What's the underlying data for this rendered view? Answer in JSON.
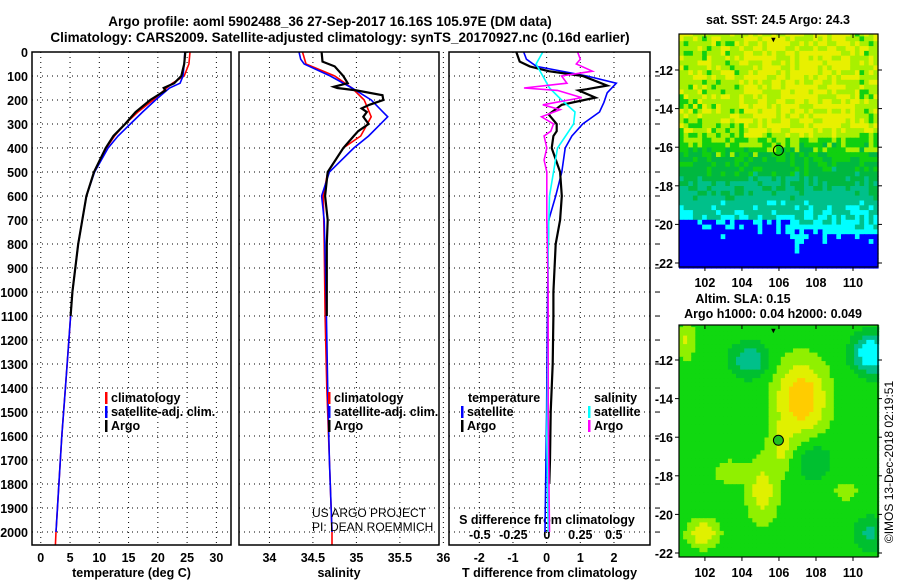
{
  "header": {
    "title_line1": "Argo profile: aoml 5902488_36 27-Sep-2017 16.16S 105.97E (DM data)",
    "title_line2": "Climatology: CARS2009. Satellite-adjusted climatology: synTS_20170927.nc (0.16d earlier)"
  },
  "credit": {
    "line1": "US ARGO PROJECT",
    "line2": "PI: DEAN ROEMMICH"
  },
  "timestamp": "©IMOS 13-Dec-2018 02:19:51",
  "colors": {
    "climatology": "#ff0000",
    "satellite": "#0000ff",
    "argo": "#000000",
    "sal_satellite": "#00ffff",
    "sal_argo": "#ff00ff"
  },
  "chart_data": [
    {
      "type": "line",
      "title": "",
      "xlabel": "temperature (deg C)",
      "ylabel": "",
      "xlim": [
        -1.5,
        32.5
      ],
      "ylim": [
        2054,
        0
      ],
      "xticks": [
        "0",
        "5",
        "10",
        "15",
        "20",
        "25",
        "30"
      ],
      "yticks": [
        "0",
        "100",
        "200",
        "300",
        "400",
        "500",
        "600",
        "700",
        "800",
        "900",
        "1000",
        "1100",
        "1200",
        "1300",
        "1400",
        "1500",
        "1600",
        "1700",
        "1800",
        "1900",
        "2000"
      ],
      "grid": true,
      "legend": {
        "placement": "bottom-center",
        "entries": [
          "climatology",
          "satellite-adj. clim.",
          "Argo"
        ]
      },
      "series": [
        {
          "name": "climatology",
          "color": "#ff0000",
          "depth": [
            0,
            50,
            100,
            130,
            150,
            200,
            250,
            300,
            350,
            400,
            500,
            600,
            700,
            800,
            900,
            1000,
            1100,
            1200,
            1400,
            1600,
            1800,
            2000,
            2054
          ],
          "values": [
            25.5,
            25.3,
            24.5,
            22.5,
            21.5,
            19.2,
            16.6,
            14.4,
            12.6,
            11.2,
            9.1,
            7.8,
            7.1,
            6.4,
            5.9,
            5.4,
            5.1,
            4.8,
            4.2,
            3.6,
            3.1,
            2.6,
            2.5
          ]
        },
        {
          "name": "satellite-adj. clim.",
          "color": "#0000ff",
          "depth": [
            0,
            50,
            100,
            130,
            150,
            200,
            250,
            300,
            350,
            400,
            500,
            600,
            700,
            800,
            900,
            1000,
            1100,
            1200,
            1400,
            1600,
            1800,
            2000
          ],
          "values": [
            24.6,
            24.5,
            24.3,
            23.8,
            22.0,
            19.6,
            17.4,
            15.3,
            13.2,
            11.5,
            9.2,
            7.8,
            7.1,
            6.4,
            5.9,
            5.4,
            5.1,
            4.8,
            4.2,
            3.6,
            3.1,
            2.6
          ]
        },
        {
          "name": "Argo",
          "color": "#000000",
          "depth": [
            0,
            50,
            100,
            130,
            150,
            160,
            200,
            250,
            300,
            350,
            400,
            500,
            600,
            700,
            800,
            900,
            1000,
            1100
          ],
          "values": [
            24.7,
            24.5,
            24.0,
            22.8,
            21.0,
            21.3,
            18.7,
            16.2,
            14.4,
            12.4,
            11.1,
            9.1,
            7.8,
            7.1,
            6.4,
            5.9,
            5.4,
            5.1
          ]
        }
      ]
    },
    {
      "type": "line",
      "xlabel": "salinity",
      "xlim": [
        33.65,
        35.95
      ],
      "ylim": [
        2054,
        0
      ],
      "xticks": [
        "34",
        "34.5",
        "35",
        "35.5",
        "36"
      ],
      "grid": true,
      "legend": {
        "placement": "bottom-right",
        "entries": [
          "climatology",
          "satellite-adj. clim.",
          "Argo"
        ]
      },
      "series": [
        {
          "name": "climatology",
          "color": "#ff0000",
          "depth": [
            0,
            50,
            100,
            150,
            200,
            270,
            350,
            400,
            500,
            600,
            800,
            1100,
            1400,
            1700,
            2000,
            2054
          ],
          "values": [
            34.38,
            34.42,
            34.75,
            34.95,
            35.09,
            35.17,
            35.05,
            34.85,
            34.67,
            34.62,
            34.63,
            34.64,
            34.66,
            34.69,
            34.72,
            34.72
          ]
        },
        {
          "name": "satellite-adj. clim.",
          "color": "#0000ff",
          "depth": [
            0,
            30,
            50,
            100,
            150,
            200,
            270,
            350,
            400,
            500,
            600,
            700,
            1000,
            1400,
            1700,
            2000
          ],
          "values": [
            34.34,
            34.36,
            34.4,
            34.7,
            34.95,
            35.17,
            35.36,
            35.14,
            34.97,
            34.69,
            34.6,
            34.63,
            34.65,
            34.67,
            34.69,
            34.72
          ]
        },
        {
          "name": "Argo",
          "color": "#000000",
          "depth": [
            0,
            40,
            60,
            100,
            130,
            145,
            150,
            160,
            180,
            200,
            220,
            235,
            250,
            270,
            300,
            330,
            350,
            400,
            500,
            600,
            700,
            800,
            1000,
            1100
          ],
          "values": [
            34.6,
            34.61,
            34.75,
            34.85,
            34.9,
            34.74,
            34.78,
            35.0,
            35.3,
            35.31,
            35.15,
            35.06,
            35.12,
            35.08,
            35.14,
            35.02,
            34.97,
            34.85,
            34.67,
            34.64,
            34.67,
            34.66,
            34.66,
            34.66
          ]
        }
      ]
    },
    {
      "type": "line",
      "xlabel": "T difference from climatology",
      "xlabel2": "S difference from climatology",
      "xlim": [
        -2.9,
        3.07
      ],
      "x2lim": [
        -0.73,
        0.77
      ],
      "ylim": [
        2054,
        0
      ],
      "xticks": [
        "-2",
        "-1",
        "0",
        "1",
        "2"
      ],
      "x2ticks": [
        "-0.5",
        "-0.25",
        "0",
        "0.25",
        "0.5"
      ],
      "grid": true,
      "legend": {
        "placement": "bottom",
        "temperature_heading": "temperature",
        "salinity_heading": "salinity",
        "entries": [
          "satellite",
          "Argo",
          "satellite",
          "Argo"
        ]
      },
      "series": [
        {
          "name": "T satellite",
          "axis": "T",
          "color": "#0000ff",
          "depth": [
            0,
            30,
            60,
            100,
            130,
            170,
            210,
            250,
            300,
            350,
            400,
            500,
            600,
            700,
            1000,
            1500,
            2000
          ],
          "values": [
            -0.68,
            -0.6,
            -0.3,
            1.2,
            2.07,
            1.8,
            1.7,
            1.57,
            1.07,
            0.75,
            0.55,
            0.45,
            0.27,
            0.06,
            0.03,
            0.0,
            -0.05
          ]
        },
        {
          "name": "T Argo",
          "axis": "T",
          "color": "#000000",
          "depth": [
            0,
            40,
            60,
            80,
            100,
            140,
            155,
            160,
            190,
            220,
            260,
            300,
            330,
            350,
            400,
            500,
            600,
            700,
            800,
            1000,
            1100,
            1300,
            1500,
            1700,
            1800
          ],
          "values": [
            -0.9,
            -0.8,
            -0.5,
            0.06,
            1.07,
            1.8,
            1.2,
            0.95,
            1.45,
            0.45,
            0.06,
            0.3,
            0.3,
            0.2,
            0.15,
            0.4,
            0.45,
            0.4,
            0.27,
            0.2,
            0.2,
            0.18,
            0.12,
            0.1,
            0.08
          ]
        },
        {
          "name": "S satellite",
          "axis": "S",
          "color": "#00ffff",
          "depth": [
            0,
            30,
            50,
            100,
            150,
            200,
            250,
            300,
            350,
            400,
            500,
            600,
            800,
            1200,
            1600,
            2000
          ],
          "values": [
            -0.03,
            -0.06,
            -0.08,
            -0.03,
            0.02,
            0.11,
            0.21,
            0.2,
            0.14,
            0.08,
            0.05,
            0.02,
            0.01,
            0.01,
            0.0,
            0.01
          ]
        },
        {
          "name": "S Argo",
          "axis": "S",
          "color": "#ff00ff",
          "depth": [
            0,
            30,
            50,
            80,
            100,
            130,
            150,
            160,
            190,
            220,
            240,
            270,
            300,
            330,
            350,
            400,
            450,
            500,
            700,
            1000,
            1500,
            2000
          ],
          "values": [
            0.23,
            0.25,
            0.22,
            0.34,
            0.11,
            0.15,
            -0.17,
            0.08,
            0.26,
            -0.03,
            0.1,
            -0.04,
            0.05,
            0.03,
            -0.02,
            0.0,
            -0.02,
            0.0,
            0.0,
            0.01,
            0.01,
            0.02
          ]
        }
      ]
    }
  ],
  "maps": {
    "sst": {
      "title": "sat. SST: 24.5 Argo: 24.3"
    },
    "sla": {
      "title_line1": "Altim. SLA: 0.15",
      "title_line2": "Argo h1000: 0.04 h2000: 0.049"
    },
    "lon_ticks": [
      "102",
      "104",
      "106",
      "108",
      "110"
    ],
    "lat_ticks": [
      "-12",
      "-14",
      "-16",
      "-18",
      "-20",
      "-22"
    ],
    "float_position": {
      "lon": 105.97,
      "lat": -16.16
    }
  }
}
